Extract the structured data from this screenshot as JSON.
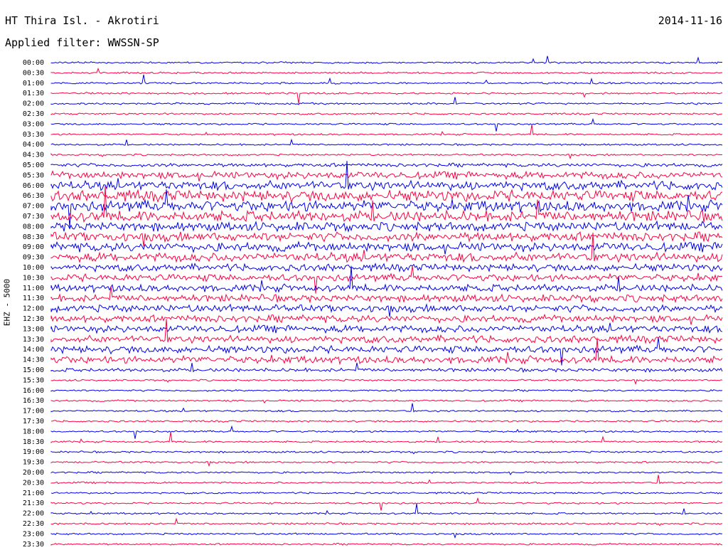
{
  "header": {
    "station": "HT Thira Isl. - Akrotiri",
    "date": "2014-11-16",
    "filter": "Applied filter: WWSSN-SP",
    "channel_label": "EHZ - 5000"
  },
  "colors": {
    "blue": "#0000ee",
    "red": "#ff0040"
  },
  "chart_data": {
    "type": "line",
    "description_free": true,
    "y_ticks": [
      "00:00",
      "00:30",
      "01:00",
      "01:30",
      "02:00",
      "02:30",
      "03:00",
      "03:30",
      "04:00",
      "04:30",
      "05:00",
      "05:30",
      "06:00",
      "06:30",
      "07:00",
      "07:30",
      "08:00",
      "08:30",
      "09:00",
      "09:30",
      "10:00",
      "10:30",
      "11:00",
      "11:30",
      "12:00",
      "12:30",
      "13:00",
      "13:30",
      "14:00",
      "14:30",
      "15:00",
      "15:30",
      "16:00",
      "16:30",
      "17:00",
      "17:30",
      "18:00",
      "18:30",
      "19:00",
      "19:30",
      "20:00",
      "20:30",
      "21:00",
      "21:30",
      "22:00",
      "22:30",
      "23:00",
      "23:30"
    ],
    "trace_colors": [
      "blue",
      "red"
    ],
    "noise_amplitude": [
      1,
      1,
      1,
      1,
      1,
      1,
      1,
      1,
      1,
      1,
      2,
      4,
      5,
      6,
      6,
      6,
      5,
      5,
      5,
      5,
      4,
      4,
      4,
      4,
      4,
      4,
      4,
      4,
      4,
      4,
      2,
      1,
      1,
      1,
      1,
      1,
      1,
      1,
      1,
      1,
      1,
      1,
      1,
      1,
      1,
      1,
      1,
      1
    ],
    "gap_19_00": [
      [
        0.84,
        0.88
      ],
      [
        0.9,
        0.93
      ]
    ]
  }
}
